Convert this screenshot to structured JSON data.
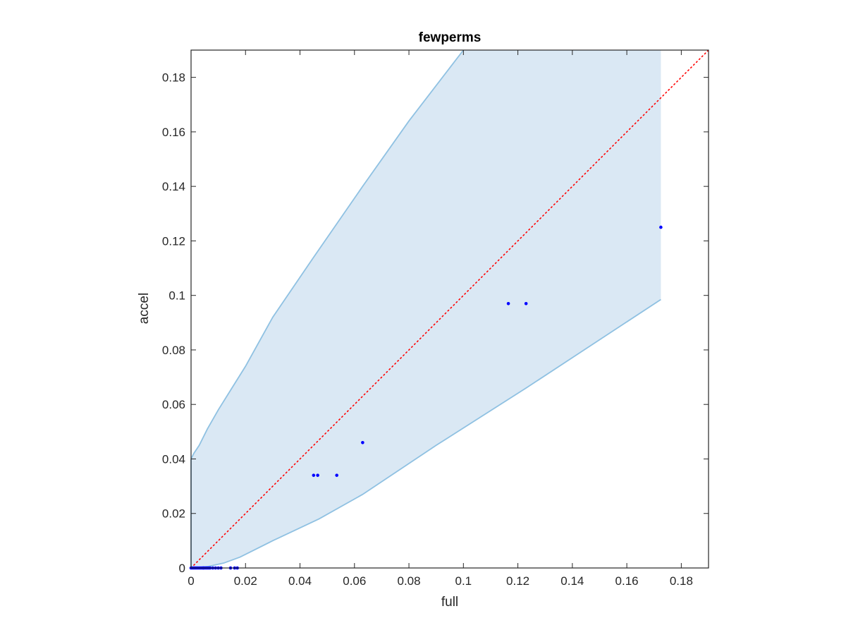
{
  "chart_data": {
    "type": "scatter",
    "title": "fewperms",
    "xlabel": "full",
    "ylabel": "accel",
    "xlim": [
      0,
      0.19
    ],
    "ylim": [
      0,
      0.19
    ],
    "xticks": [
      0,
      0.02,
      0.04,
      0.06,
      0.08,
      0.1,
      0.12,
      0.14,
      0.16,
      0.18
    ],
    "yticks": [
      0,
      0.02,
      0.04,
      0.06,
      0.08,
      0.1,
      0.12,
      0.14,
      0.16,
      0.18
    ],
    "xtick_labels": [
      "0",
      "0.02",
      "0.04",
      "0.06",
      "0.08",
      "0.1",
      "0.12",
      "0.14",
      "0.16",
      "0.18"
    ],
    "ytick_labels": [
      "0",
      "0.02",
      "0.04",
      "0.06",
      "0.08",
      "0.1",
      "0.12",
      "0.14",
      "0.16",
      "0.18"
    ],
    "grid": false,
    "points": {
      "color": "#0000ff",
      "x": [
        0,
        0.0005,
        0.001,
        0.0015,
        0.002,
        0.0025,
        0.003,
        0.0035,
        0.004,
        0.0045,
        0.005,
        0.0055,
        0.006,
        0.0065,
        0.007,
        0.008,
        0.009,
        0.01,
        0.011,
        0.0145,
        0.016,
        0.017,
        0.0045,
        0.045,
        0.0465,
        0.0535,
        0.063,
        0.1165,
        0.123,
        0.1725
      ],
      "y": [
        0,
        0,
        0,
        0,
        0,
        0,
        0,
        0,
        0,
        0,
        0,
        0,
        0,
        0,
        0,
        0,
        0,
        0,
        0,
        0,
        0,
        0,
        0,
        0.034,
        0.034,
        0.034,
        0.046,
        0.097,
        0.097,
        0.125
      ]
    },
    "reference_line": {
      "color": "#ff0000",
      "style": "dotted",
      "x": [
        0,
        0.19
      ],
      "y": [
        0,
        0.19
      ]
    },
    "band": {
      "fill": "#dae8f4",
      "edge_color": "#8fc1e2",
      "upper": {
        "x": [
          0,
          0.001,
          0.003,
          0.006,
          0.01,
          0.015,
          0.02,
          0.03,
          0.045,
          0.063,
          0.08,
          0.1
        ],
        "y": [
          0.04,
          0.042,
          0.045,
          0.051,
          0.058,
          0.066,
          0.074,
          0.092,
          0.114,
          0.14,
          0.164,
          0.19
        ]
      },
      "upper_right_x": 0.1725,
      "lower": {
        "x": [
          0,
          0.006,
          0.012,
          0.018,
          0.03,
          0.047,
          0.063,
          0.09,
          0.123,
          0.1725
        ],
        "y": [
          0,
          0.0005,
          0.0018,
          0.004,
          0.01,
          0.018,
          0.027,
          0.045,
          0.066,
          0.0985
        ]
      }
    }
  }
}
